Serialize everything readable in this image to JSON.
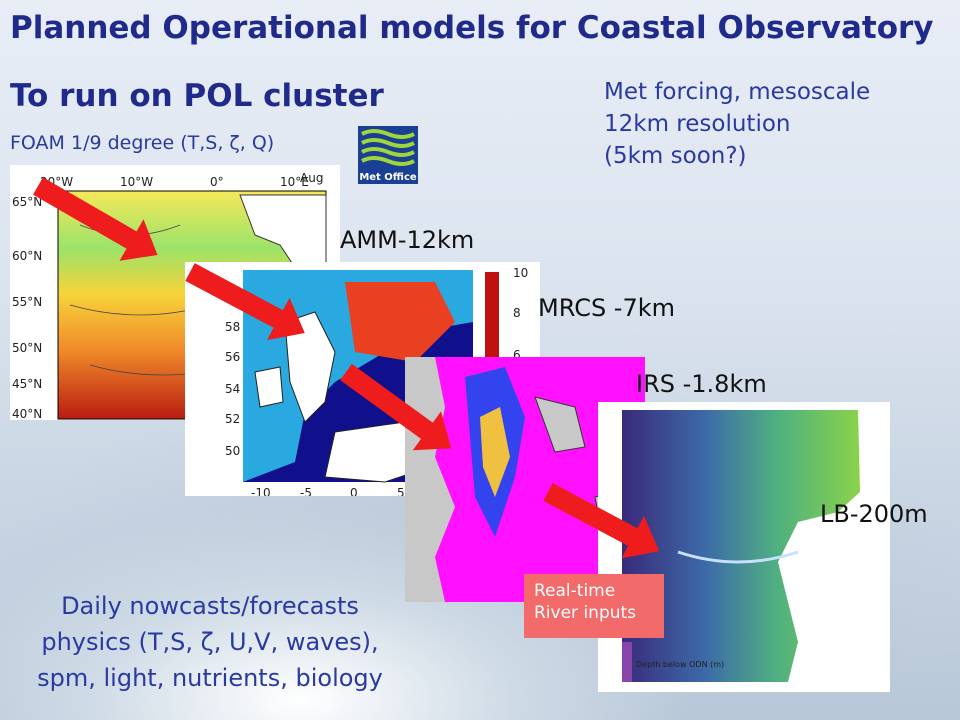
{
  "title": "Planned Operational models for Coastal Observatory",
  "subtitle": "To run on POL cluster",
  "foam_label": "FOAM 1/9 degree (T,S, ζ, Q)",
  "logo_text": "Met Office",
  "met_forcing": [
    "Met forcing, mesoscale",
    "12km resolution",
    "(5km soon?)"
  ],
  "models": {
    "amm": "AMM-12km",
    "mrcs": "MRCS -7km",
    "irs": "IRS -1.8km",
    "lb": "LB-200m"
  },
  "realtime_box": [
    "Real-time",
    "River inputs"
  ],
  "daily_text": [
    "Daily nowcasts/forecasts",
    "physics (T,S, ζ, U,V, waves),",
    "spm, light, nutrients, biology"
  ],
  "foam_map": {
    "month": "Aug",
    "lon_ticks": [
      "20°W",
      "10°W",
      "0°",
      "10°E"
    ],
    "lat_ticks": [
      "65°N",
      "60°N",
      "55°N",
      "50°N",
      "45°N",
      "40°N"
    ]
  },
  "mrcs_map": {
    "y_ticks": [
      "60",
      "58",
      "56",
      "54",
      "52",
      "50"
    ],
    "x_ticks": [
      "-10",
      "-5",
      "0",
      "5"
    ],
    "colorbar_ticks": [
      "10",
      "8",
      "6"
    ]
  },
  "lb_map": {
    "colorbar_label": "Depth below ODN (m)"
  },
  "colors": {
    "title": "#1f2a8a",
    "text_blue": "#2a3aa0",
    "arrow": "#ee1c1c",
    "realtime_box": "#f26a6a",
    "irs_magenta": "#ff00ff",
    "mrcs_blue": "#10108c"
  }
}
